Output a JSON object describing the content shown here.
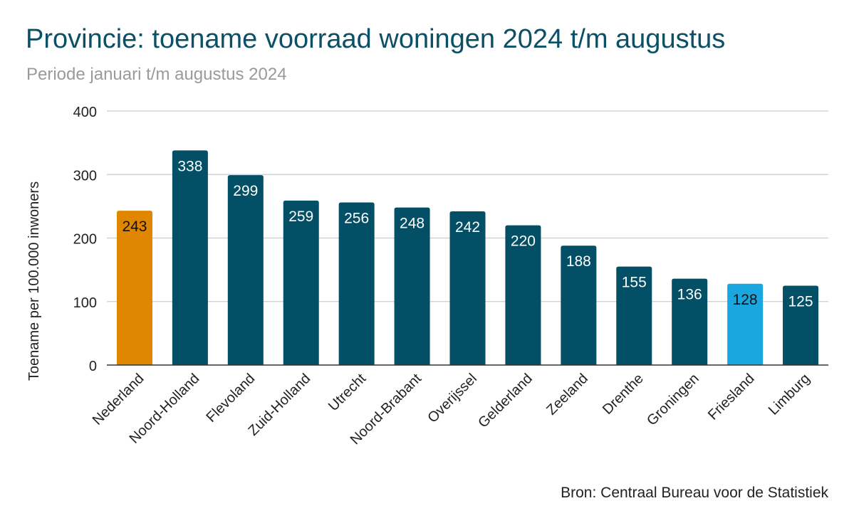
{
  "chart_data": {
    "type": "bar",
    "title": "Provincie: toename voorraad woningen 2024 t/m augustus",
    "subtitle": "Periode januari t/m augustus 2024",
    "xlabel": "",
    "ylabel": "Toename per 100.000 inwoners",
    "ylim": [
      0,
      400
    ],
    "yticks": [
      0,
      100,
      200,
      300,
      400
    ],
    "grid": true,
    "legend": "none",
    "categories": [
      "Nederland",
      "Noord-Holland",
      "Flevoland",
      "Zuid-Holland",
      "Utrecht",
      "Noord-Brabant",
      "Overijssel",
      "Gelderland",
      "Zeeland",
      "Drenthe",
      "Groningen",
      "Friesland",
      "Limburg"
    ],
    "values": [
      243,
      338,
      299,
      259,
      256,
      248,
      242,
      220,
      188,
      155,
      136,
      128,
      125
    ],
    "colors": [
      "#e08600",
      "#034f66",
      "#034f66",
      "#034f66",
      "#034f66",
      "#034f66",
      "#034f66",
      "#034f66",
      "#034f66",
      "#034f66",
      "#034f66",
      "#1aa7df",
      "#034f66"
    ],
    "label_colors": [
      "#111111",
      "#ffffff",
      "#ffffff",
      "#ffffff",
      "#ffffff",
      "#ffffff",
      "#ffffff",
      "#ffffff",
      "#ffffff",
      "#ffffff",
      "#ffffff",
      "#111111",
      "#ffffff"
    ],
    "source": "Bron: Centraal Bureau voor de Statistiek"
  }
}
